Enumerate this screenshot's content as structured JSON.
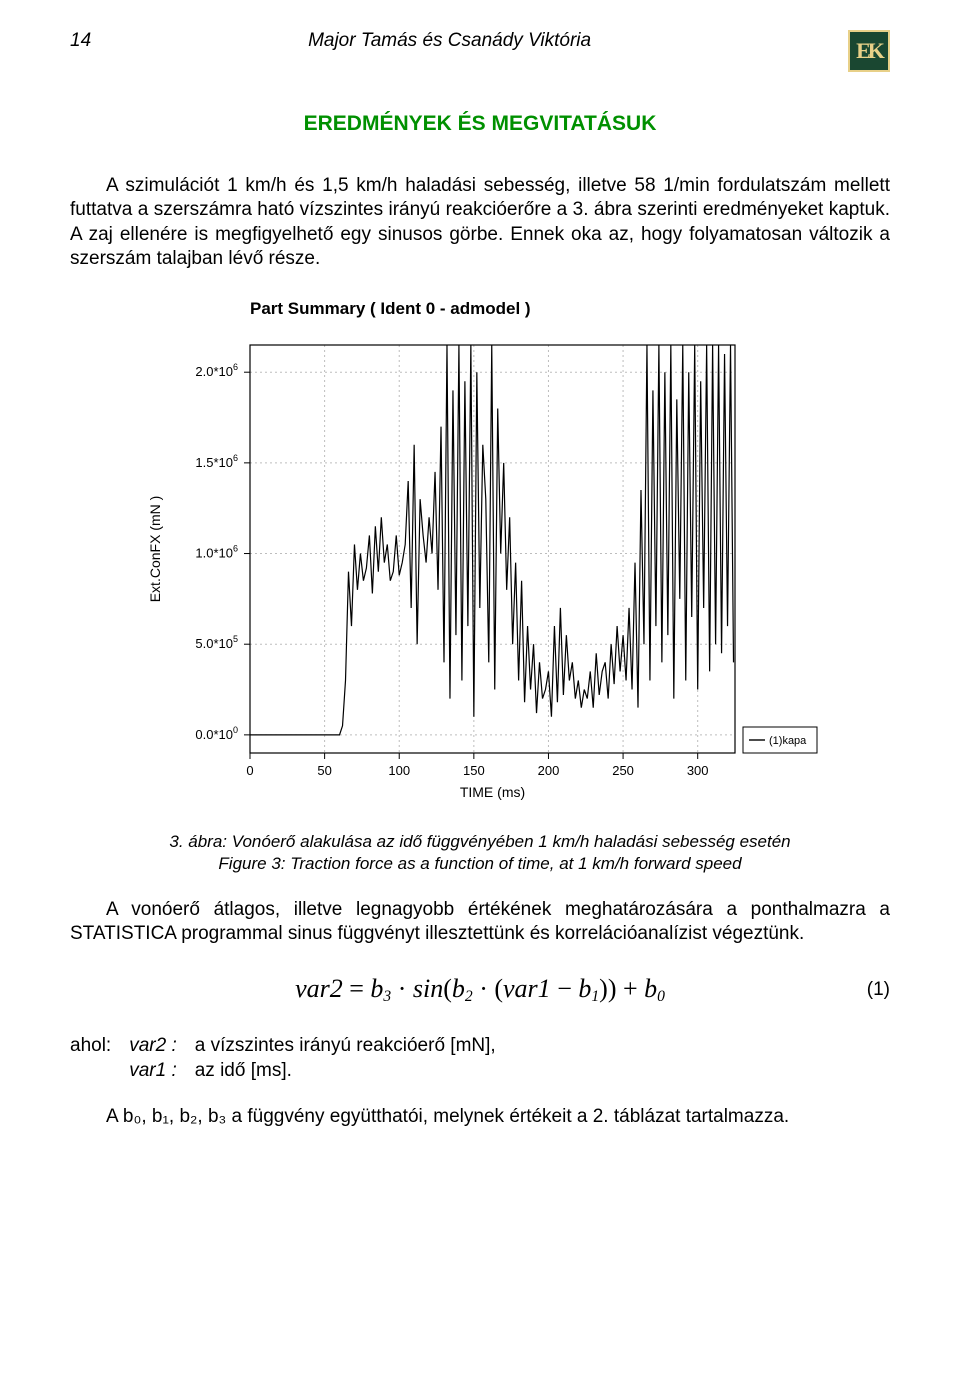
{
  "header": {
    "page_number": "14",
    "authors": "Major Tamás és Csanády Viktória",
    "logo_letters": "EK",
    "logo_bg": "#1a4731",
    "logo_fg": "#e8d088"
  },
  "section_title": "EREDMÉNYEK ÉS MEGVITATÁSUK",
  "paragraph1": "A szimulációt 1 km/h és 1,5 km/h haladási sebesség, illetve 58 1/min fordulatszám mellett futtatva a szerszámra ható vízszintes irányú reakcióerőre a 3. ábra szerinti eredményeket kaptuk. A zaj ellenére is megfigyelhető egy sinusos görbe. Ennek oka az, hogy folyamatosan változik a szerszám talajban lévő része.",
  "chart": {
    "title": "Part Summary ( Ident 0 - admodel )",
    "ylabel": "Ext.ConFX (mN )",
    "xlabel": "TIME (ms)",
    "yticks": [
      "0.0*10",
      "5.0*10",
      "1.0*10",
      "1.5*10",
      "2.0*10"
    ],
    "ytick_exps": [
      "0",
      "5",
      "6",
      "6",
      "6"
    ],
    "xticks": [
      "0",
      "50",
      "100",
      "150",
      "200",
      "250",
      "300"
    ],
    "legend_label": "(1)kapa",
    "xlim": [
      0,
      325
    ],
    "ylim": [
      -0.1,
      2.15
    ],
    "grid_color": "#bdbdbd",
    "axis_color": "#000000",
    "line_color": "#000000",
    "bg": "#ffffff",
    "title_fontsize": 17,
    "label_fontsize": 14,
    "tick_fontsize": 13,
    "line_width": 1.2
  },
  "caption_line1": "3. ábra: Vonóerő alakulása az idő függvényében 1 km/h haladási sebesség esetén",
  "caption_line2": "Figure 3: Traction force as a function of time, at 1 km/h forward speed",
  "paragraph2": "A vonóerő átlagos, illetve legnagyobb értékének meghatározására a ponthalmazra a STATISTICA programmal sinus függvényt illesztettünk és korrelációanalízist végeztünk.",
  "equation": {
    "lhs": "var2",
    "b3": "b",
    "b3_sub": "3",
    "sin": "sin",
    "b2": "b",
    "b2_sub": "2",
    "var1": "var1",
    "b1": "b",
    "b1_sub": "1",
    "b0": "b",
    "b0_sub": "0",
    "number": "(1)"
  },
  "where": {
    "label": "ahol:",
    "rows": [
      {
        "var": "var2 :",
        "def": "a vízszintes irányú reakcióerő [mN],"
      },
      {
        "var": "var1 :",
        "def": "az idő [ms]."
      }
    ]
  },
  "final_line": "A b₀, b₁, b₂, b₃ a függvény együtthatói, melynek értékeit a 2. táblázat tartalmazza.",
  "signal": {
    "t": [
      0,
      5,
      10,
      15,
      20,
      25,
      30,
      35,
      40,
      45,
      50,
      55,
      60,
      62,
      64,
      66,
      68,
      70,
      72,
      74,
      76,
      78,
      80,
      82,
      84,
      86,
      88,
      90,
      92,
      94,
      96,
      98,
      100,
      102,
      104,
      106,
      108,
      110,
      112,
      114,
      116,
      118,
      120,
      122,
      124,
      126,
      128,
      130,
      132,
      134,
      136,
      138,
      140,
      142,
      144,
      146,
      148,
      150,
      152,
      154,
      156,
      158,
      160,
      162,
      164,
      166,
      168,
      170,
      172,
      174,
      176,
      178,
      180,
      182,
      184,
      186,
      188,
      190,
      192,
      194,
      196,
      198,
      200,
      202,
      204,
      206,
      208,
      210,
      212,
      214,
      216,
      218,
      220,
      222,
      224,
      226,
      228,
      230,
      232,
      234,
      236,
      238,
      240,
      242,
      244,
      246,
      248,
      250,
      252,
      254,
      256,
      258,
      260,
      262,
      264,
      266,
      268,
      270,
      272,
      274,
      276,
      278,
      280,
      282,
      284,
      286,
      288,
      290,
      292,
      294,
      296,
      298,
      300,
      302,
      304,
      306,
      308,
      310,
      312,
      314,
      316,
      318,
      320,
      322,
      324
    ],
    "y": [
      0,
      0,
      0,
      0,
      0,
      0,
      0,
      0,
      0,
      0,
      0,
      0,
      0,
      0.05,
      0.3,
      0.9,
      0.6,
      1.05,
      0.8,
      1.0,
      0.85,
      0.92,
      1.1,
      0.78,
      1.15,
      0.9,
      1.2,
      0.95,
      1.05,
      0.85,
      0.9,
      1.1,
      0.88,
      0.95,
      1.05,
      1.4,
      0.7,
      1.6,
      0.5,
      1.3,
      1.1,
      0.95,
      1.2,
      1.0,
      1.45,
      0.8,
      1.7,
      0.4,
      2.15,
      0.2,
      1.9,
      0.55,
      2.15,
      0.3,
      1.95,
      0.6,
      2.15,
      0.1,
      2.0,
      0.7,
      1.6,
      1.3,
      0.4,
      2.15,
      0.25,
      1.8,
      1.0,
      1.5,
      0.8,
      1.2,
      0.5,
      0.95,
      0.3,
      0.85,
      0.18,
      0.6,
      0.25,
      0.5,
      0.12,
      0.4,
      0.2,
      0.25,
      0.35,
      0.1,
      0.6,
      0.18,
      0.7,
      0.22,
      0.55,
      0.3,
      0.4,
      0.2,
      0.3,
      0.15,
      0.25,
      0.2,
      0.35,
      0.15,
      0.45,
      0.22,
      0.35,
      0.4,
      0.2,
      0.5,
      0.28,
      0.6,
      0.35,
      0.55,
      0.3,
      0.7,
      0.25,
      0.95,
      0.15,
      1.35,
      0.5,
      2.15,
      0.3,
      1.9,
      0.6,
      2.15,
      0.4,
      2.0,
      0.55,
      2.15,
      0.2,
      1.85,
      0.75,
      2.15,
      0.3,
      2.0,
      0.65,
      2.15,
      0.25,
      1.95,
      0.7,
      2.15,
      0.35,
      2.15,
      0.5,
      2.15,
      0.45,
      2.1,
      0.6,
      2.15,
      0.4
    ]
  }
}
